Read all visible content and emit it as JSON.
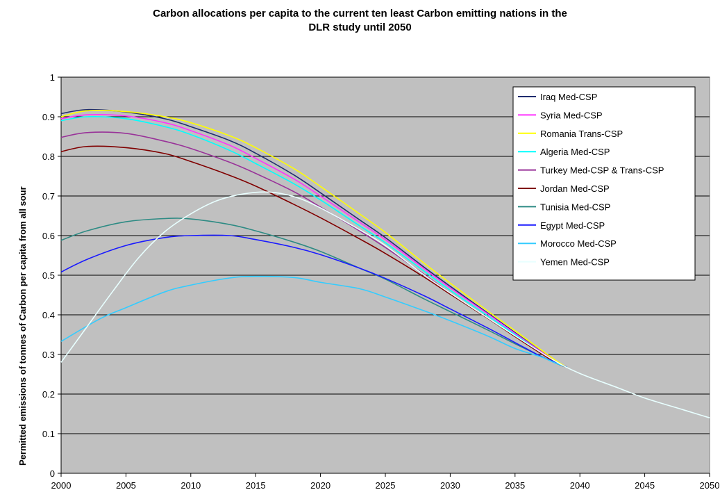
{
  "chart_data": {
    "type": "line",
    "title": "Carbon allocations per capita to the current ten least Carbon emitting nations in the DLR study until 2050",
    "title_lines": [
      "Carbon allocations per capita to the current ten least Carbon emitting nations in the",
      "DLR study until 2050"
    ],
    "xlabel": "",
    "ylabel": "Permitted emissions of tonnes of Carbon per capita from all sour",
    "xlim": [
      2000,
      2050
    ],
    "ylim": [
      0,
      1
    ],
    "x_ticks": [
      "2000",
      "2005",
      "2010",
      "2015",
      "2020",
      "2025",
      "2030",
      "2035",
      "2040",
      "2045",
      "2050"
    ],
    "y_ticks": [
      "0",
      "0.1",
      "0.2",
      "0.3",
      "0.4",
      "0.5",
      "0.6",
      "0.7",
      "0.8",
      "0.9",
      "1"
    ],
    "grid": true,
    "legend_position": "top-right",
    "plot_background": "#c0c0c0",
    "series": [
      {
        "name": "Iraq Med-CSP",
        "color": "#1f2c6e",
        "points": [
          [
            2000,
            0.908
          ],
          [
            2002,
            0.918
          ],
          [
            2005,
            0.912
          ],
          [
            2008,
            0.895
          ],
          [
            2010,
            0.875
          ],
          [
            2013,
            0.84
          ],
          [
            2015,
            0.808
          ],
          [
            2018,
            0.752
          ],
          [
            2020,
            0.708
          ],
          [
            2023,
            0.64
          ],
          [
            2025,
            0.595
          ],
          [
            2028,
            0.52
          ],
          [
            2030,
            0.472
          ],
          [
            2033,
            0.402
          ],
          [
            2035,
            0.355
          ],
          [
            2038,
            0.285
          ],
          [
            2039,
            0.268
          ]
        ]
      },
      {
        "name": "Syria Med-CSP",
        "color": "#ff33ff",
        "points": [
          [
            2000,
            0.895
          ],
          [
            2002,
            0.905
          ],
          [
            2005,
            0.902
          ],
          [
            2008,
            0.885
          ],
          [
            2010,
            0.865
          ],
          [
            2013,
            0.828
          ],
          [
            2015,
            0.795
          ],
          [
            2018,
            0.742
          ],
          [
            2020,
            0.7
          ],
          [
            2023,
            0.634
          ],
          [
            2025,
            0.59
          ],
          [
            2028,
            0.516
          ],
          [
            2030,
            0.468
          ],
          [
            2033,
            0.4
          ],
          [
            2035,
            0.353
          ],
          [
            2038,
            0.285
          ],
          [
            2039,
            0.268
          ]
        ]
      },
      {
        "name": "Romania Trans-CSP",
        "color": "#ffff00",
        "points": [
          [
            2000,
            0.9
          ],
          [
            2002,
            0.915
          ],
          [
            2005,
            0.913
          ],
          [
            2008,
            0.9
          ],
          [
            2010,
            0.885
          ],
          [
            2013,
            0.852
          ],
          [
            2015,
            0.822
          ],
          [
            2018,
            0.768
          ],
          [
            2020,
            0.724
          ],
          [
            2023,
            0.655
          ],
          [
            2025,
            0.608
          ],
          [
            2028,
            0.53
          ],
          [
            2030,
            0.48
          ],
          [
            2033,
            0.407
          ],
          [
            2035,
            0.36
          ],
          [
            2038,
            0.288
          ],
          [
            2039,
            0.268
          ]
        ]
      },
      {
        "name": "Algeria Med-CSP",
        "color": "#00ffff",
        "points": [
          [
            2000,
            0.89
          ],
          [
            2002,
            0.9
          ],
          [
            2005,
            0.895
          ],
          [
            2008,
            0.875
          ],
          [
            2010,
            0.855
          ],
          [
            2013,
            0.815
          ],
          [
            2015,
            0.782
          ],
          [
            2018,
            0.73
          ],
          [
            2020,
            0.69
          ],
          [
            2023,
            0.625
          ],
          [
            2025,
            0.582
          ],
          [
            2028,
            0.51
          ],
          [
            2030,
            0.462
          ],
          [
            2033,
            0.395
          ],
          [
            2035,
            0.35
          ],
          [
            2038,
            0.283
          ],
          [
            2039,
            0.268
          ]
        ]
      },
      {
        "name": "Turkey Med-CSP & Trans-CSP",
        "color": "#993399",
        "points": [
          [
            2000,
            0.848
          ],
          [
            2002,
            0.86
          ],
          [
            2005,
            0.858
          ],
          [
            2008,
            0.838
          ],
          [
            2010,
            0.82
          ],
          [
            2013,
            0.785
          ],
          [
            2015,
            0.757
          ],
          [
            2018,
            0.71
          ],
          [
            2020,
            0.672
          ],
          [
            2023,
            0.612
          ],
          [
            2025,
            0.57
          ],
          [
            2028,
            0.502
          ],
          [
            2030,
            0.455
          ],
          [
            2033,
            0.39
          ],
          [
            2035,
            0.346
          ],
          [
            2038,
            0.282
          ],
          [
            2039,
            0.268
          ]
        ]
      },
      {
        "name": "Jordan Med-CSP",
        "color": "#800000",
        "points": [
          [
            2000,
            0.812
          ],
          [
            2002,
            0.825
          ],
          [
            2005,
            0.822
          ],
          [
            2008,
            0.807
          ],
          [
            2010,
            0.787
          ],
          [
            2013,
            0.752
          ],
          [
            2015,
            0.725
          ],
          [
            2018,
            0.678
          ],
          [
            2020,
            0.645
          ],
          [
            2023,
            0.592
          ],
          [
            2025,
            0.555
          ],
          [
            2028,
            0.495
          ],
          [
            2030,
            0.452
          ],
          [
            2033,
            0.389
          ],
          [
            2035,
            0.345
          ],
          [
            2038,
            0.282
          ],
          [
            2039,
            0.268
          ]
        ]
      },
      {
        "name": "Tunisia Med-CSP",
        "color": "#2e8b84",
        "points": [
          [
            2000,
            0.588
          ],
          [
            2002,
            0.612
          ],
          [
            2005,
            0.635
          ],
          [
            2008,
            0.643
          ],
          [
            2010,
            0.642
          ],
          [
            2013,
            0.628
          ],
          [
            2015,
            0.612
          ],
          [
            2018,
            0.583
          ],
          [
            2020,
            0.56
          ],
          [
            2023,
            0.518
          ],
          [
            2025,
            0.49
          ],
          [
            2028,
            0.44
          ],
          [
            2030,
            0.408
          ],
          [
            2033,
            0.36
          ],
          [
            2035,
            0.327
          ],
          [
            2038,
            0.28
          ],
          [
            2039,
            0.268
          ]
        ]
      },
      {
        "name": "Egypt Med-CSP",
        "color": "#1a1aff",
        "points": [
          [
            2000,
            0.508
          ],
          [
            2002,
            0.54
          ],
          [
            2005,
            0.575
          ],
          [
            2008,
            0.595
          ],
          [
            2010,
            0.6
          ],
          [
            2013,
            0.6
          ],
          [
            2015,
            0.59
          ],
          [
            2018,
            0.57
          ],
          [
            2020,
            0.552
          ],
          [
            2023,
            0.518
          ],
          [
            2025,
            0.492
          ],
          [
            2028,
            0.448
          ],
          [
            2030,
            0.415
          ],
          [
            2033,
            0.365
          ],
          [
            2035,
            0.33
          ],
          [
            2037,
            0.295
          ],
          [
            2038,
            0.282
          ],
          [
            2039,
            0.268
          ]
        ]
      },
      {
        "name": "Morocco Med-CSP",
        "color": "#33ccff",
        "points": [
          [
            2000,
            0.333
          ],
          [
            2003,
            0.39
          ],
          [
            2005,
            0.418
          ],
          [
            2008,
            0.458
          ],
          [
            2010,
            0.475
          ],
          [
            2013,
            0.493
          ],
          [
            2015,
            0.497
          ],
          [
            2018,
            0.494
          ],
          [
            2020,
            0.482
          ],
          [
            2023,
            0.466
          ],
          [
            2025,
            0.445
          ],
          [
            2028,
            0.41
          ],
          [
            2030,
            0.385
          ],
          [
            2033,
            0.345
          ],
          [
            2035,
            0.315
          ],
          [
            2037,
            0.294
          ],
          [
            2038,
            0.28
          ],
          [
            2039,
            0.268
          ]
        ]
      },
      {
        "name": "Yemen Med-CSP",
        "color": "#e8ffff",
        "points": [
          [
            2000,
            0.28
          ],
          [
            2002,
            0.37
          ],
          [
            2004,
            0.46
          ],
          [
            2006,
            0.545
          ],
          [
            2008,
            0.61
          ],
          [
            2010,
            0.655
          ],
          [
            2012,
            0.688
          ],
          [
            2014,
            0.705
          ],
          [
            2016,
            0.71
          ],
          [
            2018,
            0.698
          ],
          [
            2020,
            0.67
          ],
          [
            2023,
            0.615
          ],
          [
            2025,
            0.575
          ],
          [
            2028,
            0.5
          ],
          [
            2030,
            0.455
          ],
          [
            2033,
            0.39
          ],
          [
            2035,
            0.347
          ],
          [
            2038,
            0.285
          ],
          [
            2040,
            0.252
          ],
          [
            2043,
            0.215
          ],
          [
            2045,
            0.19
          ],
          [
            2048,
            0.16
          ],
          [
            2050,
            0.14
          ]
        ]
      }
    ]
  }
}
